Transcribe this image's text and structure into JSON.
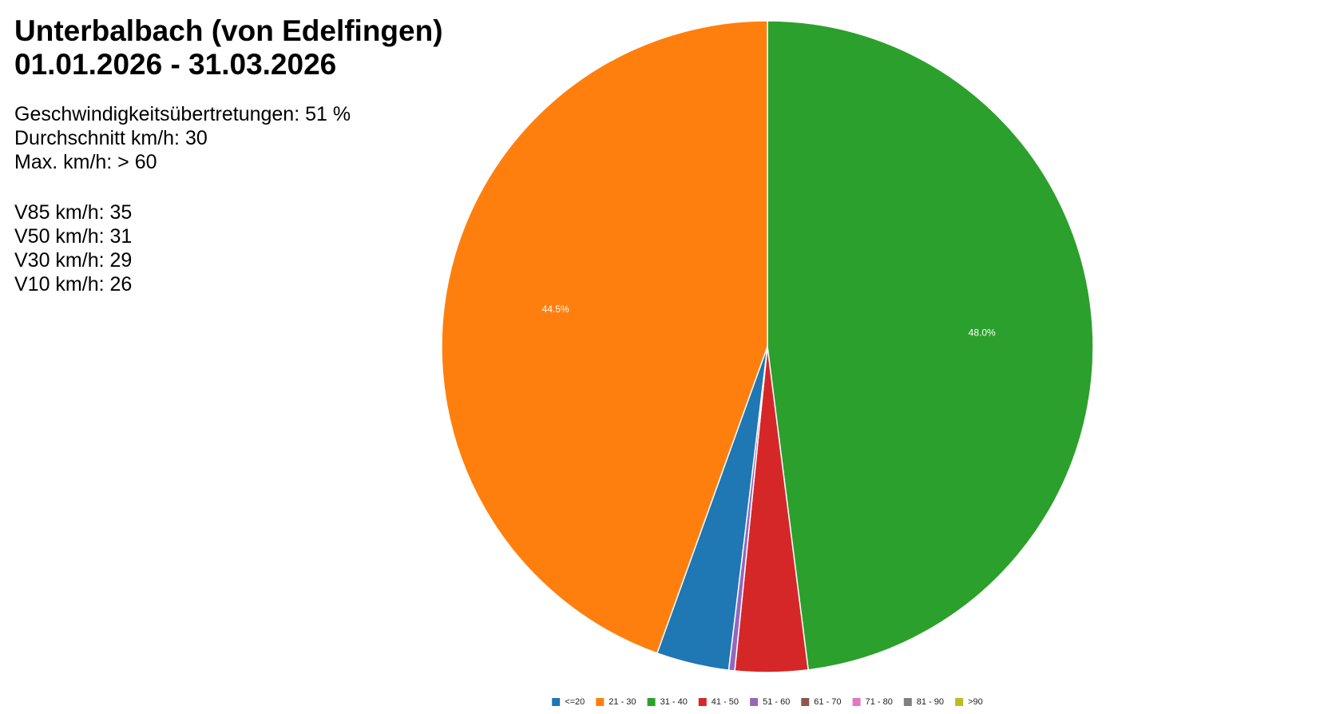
{
  "header": {
    "title_line1": "Unterbalbach (von Edelfingen)",
    "title_line2": "01.01.2026 - 31.03.2026"
  },
  "stats": {
    "group1": [
      "Geschwindigkeitsübertretungen: 51 %",
      "Durchschnitt km/h: 30",
      "Max. km/h: > 60"
    ],
    "group2": [
      "V85 km/h: 35",
      "V50 km/h: 31",
      "V30 km/h: 29",
      "V10 km/h: 26"
    ]
  },
  "chart_data": {
    "type": "pie",
    "title": "",
    "legend_position": "bottom",
    "categories": [
      "<=20",
      "21 - 30",
      "31 - 40",
      "41 - 50",
      "51 - 60",
      "61 - 70",
      "71 - 80",
      "81 - 90",
      ">90"
    ],
    "values": [
      3.6,
      44.5,
      48.0,
      3.6,
      0.3,
      0.0,
      0.0,
      0.0,
      0.0
    ],
    "colors": [
      "#1f77b4",
      "#ff7f0e",
      "#2ca02c",
      "#d62728",
      "#9467bd",
      "#8c564b",
      "#e377c2",
      "#7f7f7f",
      "#bcbd22"
    ],
    "slice_labels": [
      "",
      "44.5%",
      "48.0%",
      "",
      "",
      "",
      "",
      "",
      ""
    ],
    "start_category": "31 - 40",
    "direction": "clockwise"
  }
}
